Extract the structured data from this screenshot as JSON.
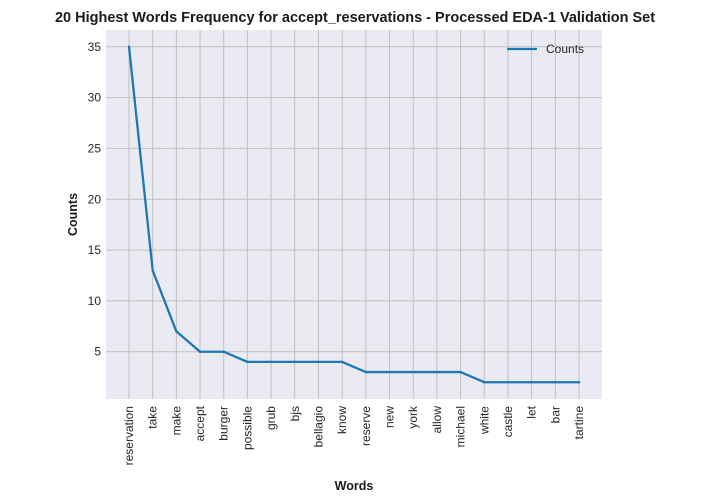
{
  "chart_data": {
    "type": "line",
    "title": "20 Highest Words Frequency for accept_reservations - Processed EDA-1 Validation Set",
    "xlabel": "Words",
    "ylabel": "Counts",
    "categories": [
      "reservation",
      "take",
      "make",
      "accept",
      "burger",
      "possible",
      "grub",
      "bjs",
      "bellagio",
      "know",
      "reserve",
      "new",
      "york",
      "allow",
      "michael",
      "white",
      "castle",
      "let",
      "bar",
      "tartine"
    ],
    "series": [
      {
        "name": "Counts",
        "values": [
          35,
          13,
          7,
          5,
          5,
          4,
          4,
          4,
          4,
          4,
          3,
          3,
          3,
          3,
          3,
          2,
          2,
          2,
          2,
          2
        ],
        "color": "#1f77b4"
      }
    ],
    "yticks": [
      5,
      10,
      15,
      20,
      25,
      30,
      35
    ],
    "ylim": [
      0.35,
      36.65
    ],
    "grid": true,
    "legend_position": "top-right",
    "style": {
      "plot_background": "#eaeaf2",
      "grid_color": "#c0c0c0"
    }
  }
}
